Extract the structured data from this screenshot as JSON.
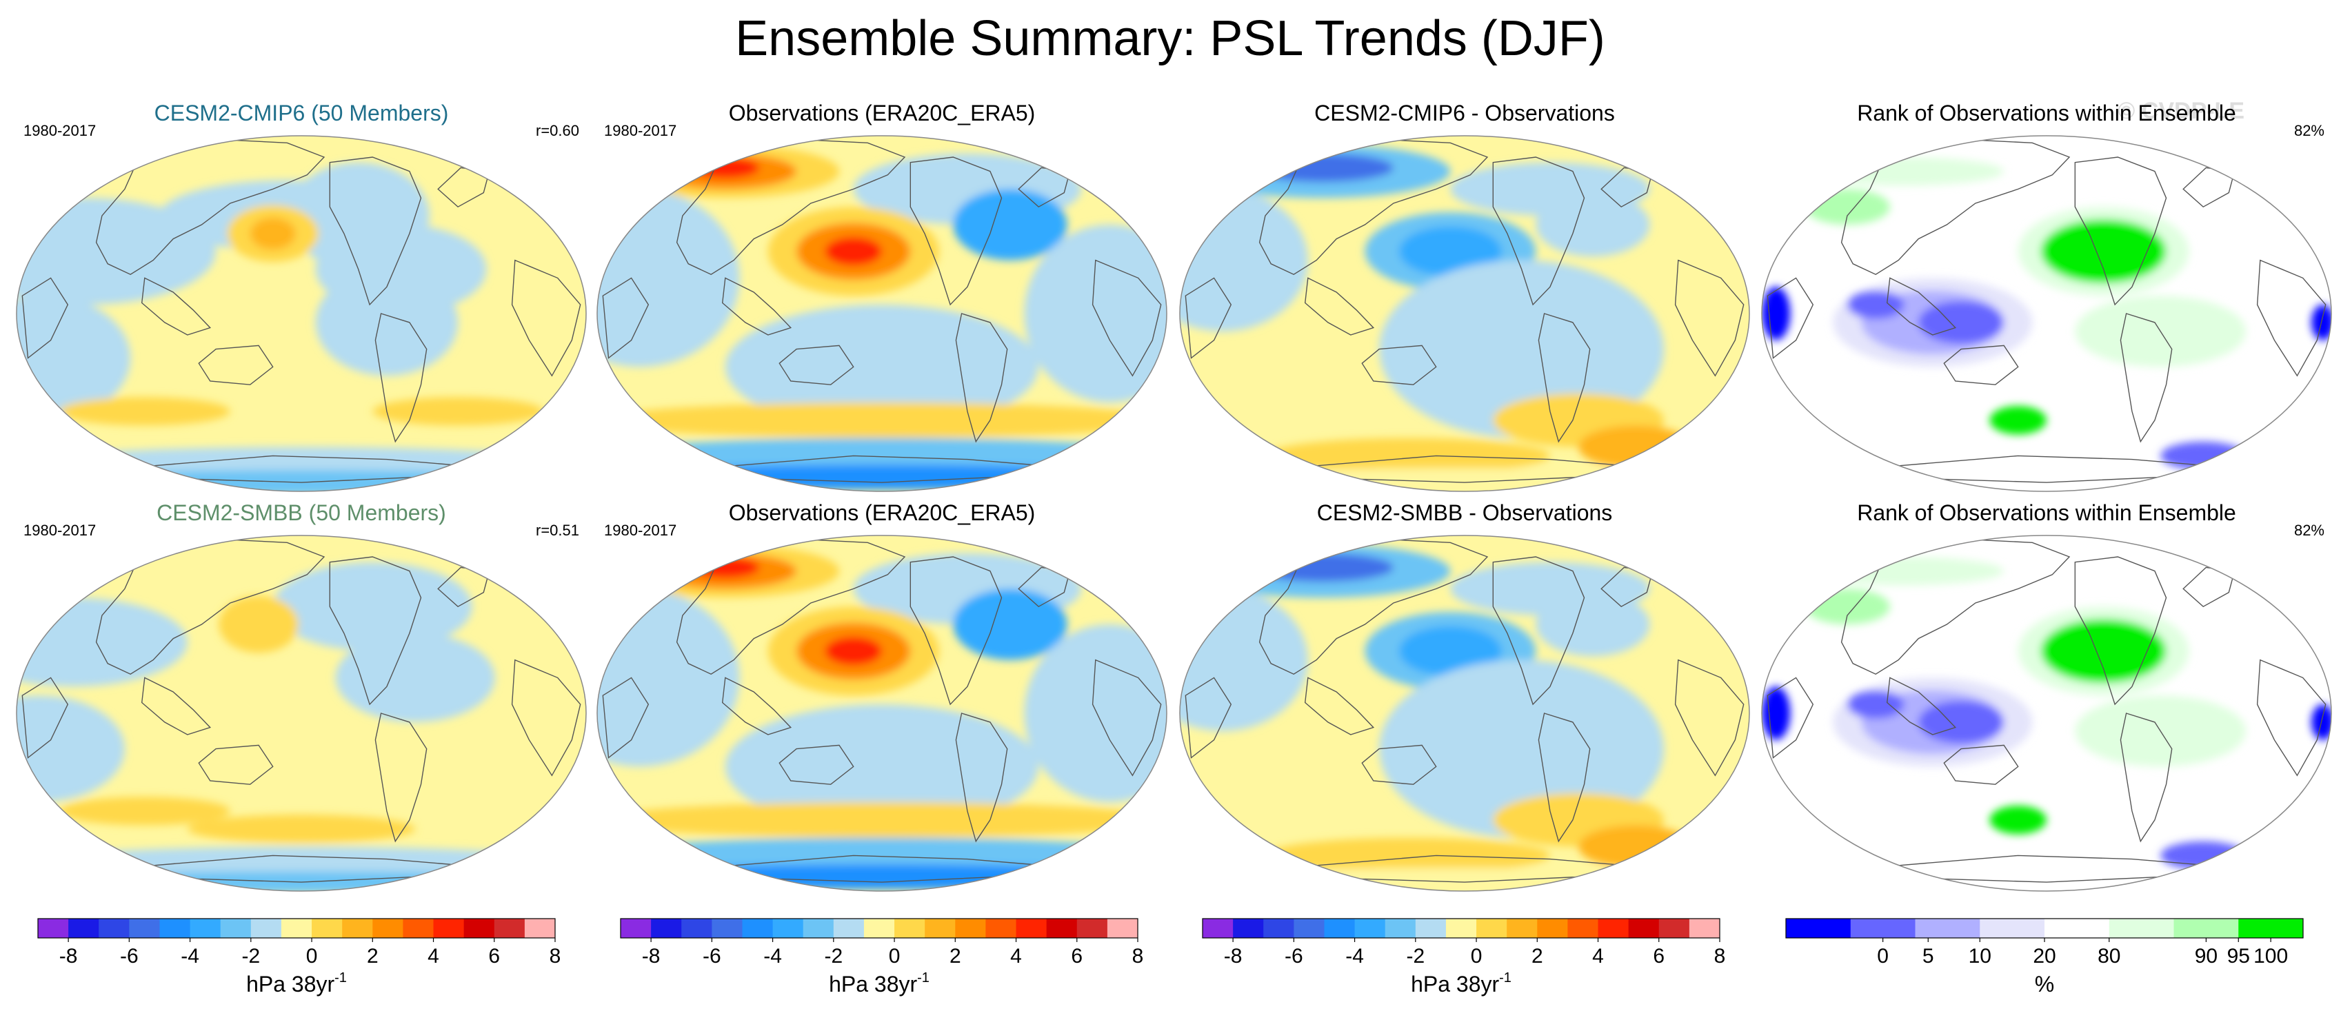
{
  "title": "Ensemble Summary: PSL Trends (DJF)",
  "watermark": "© CVDP-LE",
  "panels": [
    {
      "row": 0,
      "col": 0,
      "kind": "model",
      "title": "CESM2-CMIP6 (50 Members)",
      "title_color": "#1f6f8b",
      "left": "1980-2017",
      "right": "r=0.60"
    },
    {
      "row": 0,
      "col": 1,
      "kind": "obs",
      "title": "Observations (ERA20C_ERA5)",
      "left": "1980-2017",
      "right": ""
    },
    {
      "row": 0,
      "col": 2,
      "kind": "diff",
      "title": "CESM2-CMIP6 - Observations",
      "left": "",
      "right": ""
    },
    {
      "row": 0,
      "col": 3,
      "kind": "rank",
      "title": "Rank of Observations within Ensemble",
      "left": "",
      "right": "82%"
    },
    {
      "row": 1,
      "col": 0,
      "kind": "model",
      "title": "CESM2-SMBB (50 Members)",
      "title_color": "#5e8f6a",
      "left": "1980-2017",
      "right": "r=0.51"
    },
    {
      "row": 1,
      "col": 1,
      "kind": "obs",
      "title": "Observations (ERA20C_ERA5)",
      "left": "1980-2017",
      "right": ""
    },
    {
      "row": 1,
      "col": 2,
      "kind": "diff",
      "title": "CESM2-SMBB - Observations",
      "left": "",
      "right": ""
    },
    {
      "row": 1,
      "col": 3,
      "kind": "rank",
      "title": "Rank of Observations within Ensemble",
      "left": "",
      "right": "82%"
    }
  ],
  "colorbars": [
    {
      "id": "psl1",
      "label": "hPa 38yr",
      "label_sup": "-1",
      "colors": [
        "#8a2be2",
        "#1a1ae6",
        "#2e46e6",
        "#3f6fe8",
        "#1e90ff",
        "#33aaff",
        "#6cc4f5",
        "#b4dcf2",
        "#fff7a0",
        "#ffd84a",
        "#ffb41e",
        "#ff8c00",
        "#ff5a00",
        "#ff2400",
        "#d40000",
        "#d22b2b",
        "#ffb0b0"
      ],
      "tick_labels": [
        "-8",
        "-6",
        "-4",
        "-2",
        "0",
        "2",
        "4",
        "6",
        "8"
      ]
    },
    {
      "id": "psl2",
      "label": "hPa 38yr",
      "label_sup": "-1",
      "colors": [
        "#8a2be2",
        "#1a1ae6",
        "#2e46e6",
        "#3f6fe8",
        "#1e90ff",
        "#33aaff",
        "#6cc4f5",
        "#b4dcf2",
        "#fff7a0",
        "#ffd84a",
        "#ffb41e",
        "#ff8c00",
        "#ff5a00",
        "#ff2400",
        "#d40000",
        "#d22b2b",
        "#ffb0b0"
      ],
      "tick_labels": [
        "-8",
        "-6",
        "-4",
        "-2",
        "0",
        "2",
        "4",
        "6",
        "8"
      ]
    },
    {
      "id": "psl3",
      "label": "hPa 38yr",
      "label_sup": "-1",
      "colors": [
        "#8a2be2",
        "#1a1ae6",
        "#2e46e6",
        "#3f6fe8",
        "#1e90ff",
        "#33aaff",
        "#6cc4f5",
        "#b4dcf2",
        "#fff7a0",
        "#ffd84a",
        "#ffb41e",
        "#ff8c00",
        "#ff5a00",
        "#ff2400",
        "#d40000",
        "#d22b2b",
        "#ffb0b0"
      ],
      "tick_labels": [
        "-8",
        "-6",
        "-4",
        "-2",
        "0",
        "2",
        "4",
        "6",
        "8"
      ]
    },
    {
      "id": "rank",
      "label": "%",
      "label_sup": "",
      "colors": [
        "#0000ff",
        "#6666ff",
        "#b0b0ff",
        "#e4e4fb",
        "#ffffff",
        "#e0ffe0",
        "#b0ffb0",
        "#00ee00"
      ],
      "tick_labels": [
        "0",
        "5",
        "10",
        "20",
        "80",
        "90",
        "95",
        "100"
      ]
    }
  ],
  "chart_data": [
    {
      "type": "heatmap",
      "subtype": "map-contour",
      "title": "CESM2-CMIP6 (50 Members)",
      "period": "1980-2017",
      "pattern_correlation": 0.6,
      "units": "hPa 38yr-1",
      "levels": [
        -8,
        -7,
        -6,
        -5,
        -4,
        -3,
        -2,
        -1,
        0,
        1,
        2,
        3,
        4,
        5,
        6,
        7,
        8
      ]
    },
    {
      "type": "heatmap",
      "subtype": "map-contour",
      "title": "Observations (ERA20C_ERA5)",
      "period": "1980-2017",
      "units": "hPa 38yr-1",
      "levels": [
        -8,
        -7,
        -6,
        -5,
        -4,
        -3,
        -2,
        -1,
        0,
        1,
        2,
        3,
        4,
        5,
        6,
        7,
        8
      ]
    },
    {
      "type": "heatmap",
      "subtype": "map-contour",
      "title": "CESM2-CMIP6 - Observations",
      "units": "hPa 38yr-1",
      "levels": [
        -8,
        -7,
        -6,
        -5,
        -4,
        -3,
        -2,
        -1,
        0,
        1,
        2,
        3,
        4,
        5,
        6,
        7,
        8
      ]
    },
    {
      "type": "heatmap",
      "subtype": "map-contour",
      "title": "Rank of Observations within Ensemble",
      "percent_area": "82%",
      "units": "%",
      "levels": [
        0,
        5,
        10,
        20,
        80,
        90,
        95,
        100
      ]
    },
    {
      "type": "heatmap",
      "subtype": "map-contour",
      "title": "CESM2-SMBB (50 Members)",
      "period": "1980-2017",
      "pattern_correlation": 0.51,
      "units": "hPa 38yr-1",
      "levels": [
        -8,
        -7,
        -6,
        -5,
        -4,
        -3,
        -2,
        -1,
        0,
        1,
        2,
        3,
        4,
        5,
        6,
        7,
        8
      ]
    },
    {
      "type": "heatmap",
      "subtype": "map-contour",
      "title": "Observations (ERA20C_ERA5)",
      "period": "1980-2017",
      "units": "hPa 38yr-1",
      "levels": [
        -8,
        -7,
        -6,
        -5,
        -4,
        -3,
        -2,
        -1,
        0,
        1,
        2,
        3,
        4,
        5,
        6,
        7,
        8
      ]
    },
    {
      "type": "heatmap",
      "subtype": "map-contour",
      "title": "CESM2-SMBB - Observations",
      "units": "hPa 38yr-1",
      "levels": [
        -8,
        -7,
        -6,
        -5,
        -4,
        -3,
        -2,
        -1,
        0,
        1,
        2,
        3,
        4,
        5,
        6,
        7,
        8
      ]
    },
    {
      "type": "heatmap",
      "subtype": "map-contour",
      "title": "Rank of Observations within Ensemble",
      "percent_area": "82%",
      "units": "%",
      "levels": [
        0,
        5,
        10,
        20,
        80,
        90,
        95,
        100
      ]
    }
  ]
}
